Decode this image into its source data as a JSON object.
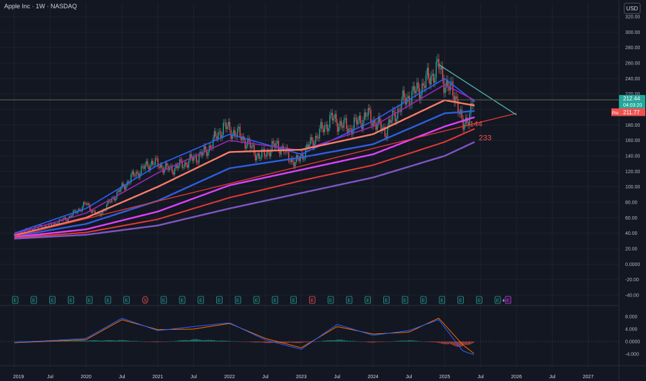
{
  "header": {
    "title": "Apple Inc · 1W · NASDAQ",
    "currency_button": "USD"
  },
  "colors": {
    "background": "#131722",
    "grid": "#1e222d",
    "axis_text": "#b2b5be",
    "candle_up": "#26a69a",
    "candle_down": "#ef5350",
    "ema_blue": "#2962ff",
    "ema_purple": "#9c27b0",
    "ema_salmon": "#ff7b6b",
    "ema_blue_dark": "#2f5fe0",
    "ema_magenta": "#e040fb",
    "ema_red": "#e53935",
    "ema_violet": "#7e57c2",
    "trendline_green": "#4db6ac",
    "macd_line": "#2962ff",
    "signal_line": "#ff6d00",
    "current_price_bg": "#26a69a",
    "pre_price_bg": "#ef5350"
  },
  "price_tags": {
    "current_price": "212.44",
    "countdown": "04:03:20",
    "pre_label": "Pre",
    "pre_price": "211.77"
  },
  "ma_labels": {
    "ma144": "144",
    "ma233": "233"
  },
  "earnings_markers": [
    "E",
    "E",
    "E",
    "E",
    "E",
    "E",
    "E",
    "S",
    "E",
    "E",
    "E",
    "E",
    "E",
    "E",
    "E",
    "E",
    "E",
    "E",
    "E",
    "E",
    "E",
    "E",
    "E",
    "E",
    "E",
    "E",
    "E",
    "E"
  ],
  "dividend_marker": "S",
  "plus_marker": "+",
  "chart_data": {
    "type": "line",
    "title": "Apple Inc · 1W · NASDAQ",
    "x_ticks": [
      "2019",
      "Jul",
      "2020",
      "Jul",
      "2021",
      "Jul",
      "2022",
      "Jul",
      "2023",
      "Jul",
      "2024",
      "Jul",
      "2025",
      "Jul",
      "2026",
      "Jul",
      "2027"
    ],
    "y_ticks": [
      "-40.00",
      "-20.00",
      "0.0000",
      "20.00",
      "40.00",
      "60.00",
      "80.00",
      "100.00",
      "120.00",
      "140.00",
      "160.00",
      "180.00",
      "200.00",
      "220.00",
      "240.00",
      "260.00",
      "280.00",
      "300.00",
      "320.00"
    ],
    "y_range": [
      -40,
      320
    ],
    "price_series": {
      "name": "AAPL",
      "x": [
        "2019-01",
        "2019-04",
        "2019-07",
        "2019-10",
        "2020-01",
        "2020-03",
        "2020-06",
        "2020-09",
        "2020-12",
        "2021-03",
        "2021-06",
        "2021-09",
        "2021-12",
        "2022-03",
        "2022-06",
        "2022-09",
        "2022-12",
        "2023-03",
        "2023-06",
        "2023-09",
        "2023-12",
        "2024-03",
        "2024-06",
        "2024-09",
        "2024-12",
        "2025-01",
        "2025-03",
        "2025-04",
        "2025-06"
      ],
      "y": [
        38,
        46,
        50,
        60,
        78,
        62,
        90,
        115,
        132,
        122,
        132,
        145,
        178,
        165,
        138,
        155,
        130,
        160,
        188,
        175,
        193,
        172,
        210,
        228,
        255,
        235,
        215,
        175,
        212
      ]
    },
    "moving_averages": [
      {
        "name": "",
        "x": [
          "2019-01",
          "2020-01",
          "2021-01",
          "2022-01",
          "2023-01",
          "2024-01",
          "2025-01",
          "2025-06"
        ],
        "y": [
          40,
          72,
          128,
          168,
          142,
          185,
          240,
          210
        ]
      },
      {
        "name": "",
        "x": [
          "2019-01",
          "2020-01",
          "2021-01",
          "2022-01",
          "2023-01",
          "2024-01",
          "2025-01",
          "2025-06"
        ],
        "y": [
          39,
          66,
          118,
          160,
          147,
          178,
          232,
          212
        ]
      },
      {
        "name": "",
        "x": [
          "2019-01",
          "2020-01",
          "2021-01",
          "2022-01",
          "2023-01",
          "2024-01",
          "2025-01",
          "2025-06"
        ],
        "y": [
          37,
          60,
          100,
          145,
          148,
          168,
          212,
          205
        ]
      },
      {
        "name": "",
        "x": [
          "2019-01",
          "2020-01",
          "2021-01",
          "2022-01",
          "2023-01",
          "2024-01",
          "2025-01",
          "2025-06"
        ],
        "y": [
          36,
          52,
          82,
          124,
          138,
          155,
          195,
          198
        ]
      },
      {
        "name": "",
        "x": [
          "2019-01",
          "2020-01",
          "2021-01",
          "2022-01",
          "2023-01",
          "2024-01",
          "2025-01",
          "2025-06"
        ],
        "y": [
          35,
          45,
          68,
          102,
          122,
          142,
          178,
          190
        ]
      },
      {
        "name": "144",
        "x": [
          "2019-01",
          "2020-01",
          "2021-01",
          "2022-01",
          "2023-01",
          "2024-01",
          "2025-01",
          "2025-06"
        ],
        "y": [
          34,
          41,
          58,
          86,
          108,
          128,
          158,
          175
        ]
      },
      {
        "name": "233",
        "x": [
          "2019-01",
          "2020-01",
          "2021-01",
          "2022-01",
          "2023-01",
          "2024-01",
          "2025-01",
          "2025-06"
        ],
        "y": [
          33,
          38,
          50,
          72,
          92,
          112,
          140,
          158
        ]
      }
    ],
    "trendlines": [
      {
        "name": "",
        "x": [
          "2019-01",
          "2026-01"
        ],
        "y": [
          36,
          195
        ]
      },
      {
        "name": "",
        "x": [
          "2024-12",
          "2026-01"
        ],
        "y": [
          258,
          193
        ]
      }
    ],
    "horizontal_line": {
      "y": 212.44
    },
    "macd": {
      "y_ticks": [
        "-4.000",
        "0.0000",
        "4.000",
        "8.000"
      ],
      "y_range": [
        -6,
        10
      ],
      "x": [
        "2019-01",
        "2019-07",
        "2020-01",
        "2020-07",
        "2021-01",
        "2021-07",
        "2022-01",
        "2022-07",
        "2023-01",
        "2023-07",
        "2024-01",
        "2024-07",
        "2024-12",
        "2025-04",
        "2025-06"
      ],
      "macd_line": [
        -0.3,
        0.3,
        1.0,
        7.5,
        3.5,
        4.8,
        6.0,
        0.5,
        -2.5,
        5.5,
        2.0,
        3.5,
        7.0,
        -3.0,
        -4.3
      ],
      "signal_line": [
        -0.4,
        0.1,
        0.6,
        7.0,
        3.8,
        4.0,
        5.8,
        1.0,
        -2.0,
        4.8,
        2.4,
        3.0,
        7.5,
        -1.0,
        -4.0
      ],
      "histogram": [
        0.1,
        0.2,
        0.4,
        0.5,
        -0.3,
        0.8,
        0.2,
        -0.5,
        -0.5,
        0.7,
        -0.4,
        0.5,
        -0.5,
        -2.0,
        -0.3
      ]
    }
  }
}
